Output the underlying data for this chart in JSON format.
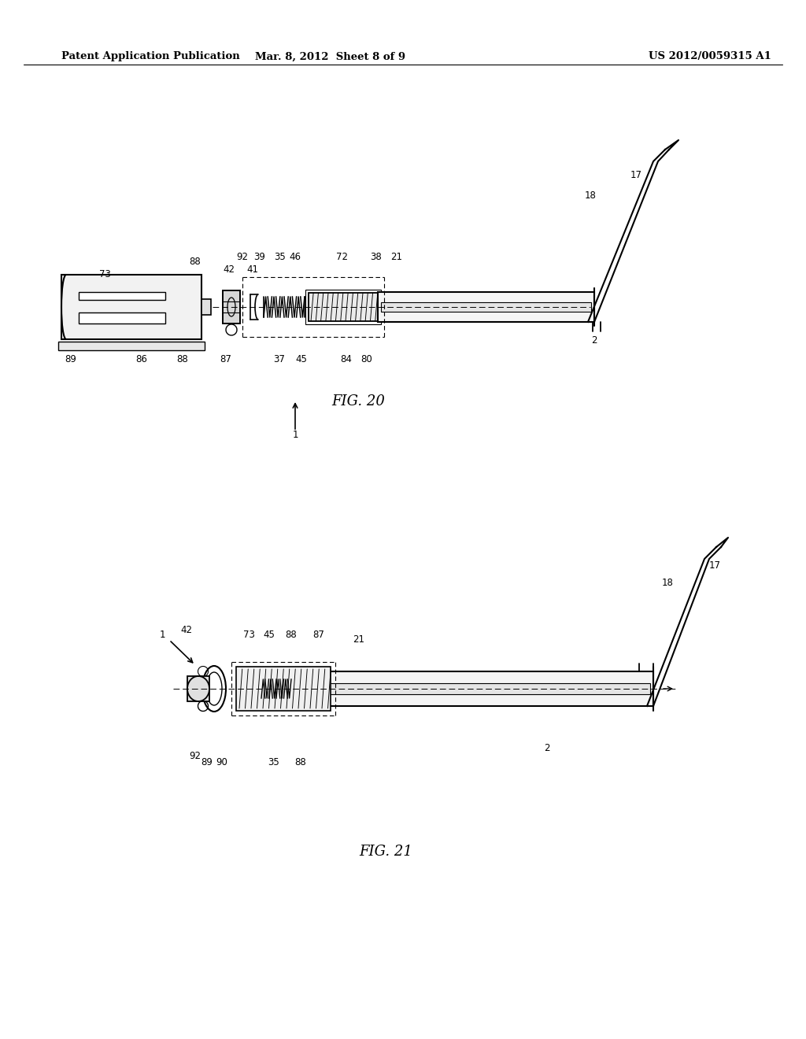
{
  "bg_color": "#ffffff",
  "header_left": "Patent Application Publication",
  "header_center": "Mar. 8, 2012  Sheet 8 of 9",
  "header_right": "US 2012/0059315 A1",
  "fig20_title": "FIG. 20",
  "fig21_title": "FIG. 21",
  "line_color": "#000000",
  "text_color": "#000000"
}
